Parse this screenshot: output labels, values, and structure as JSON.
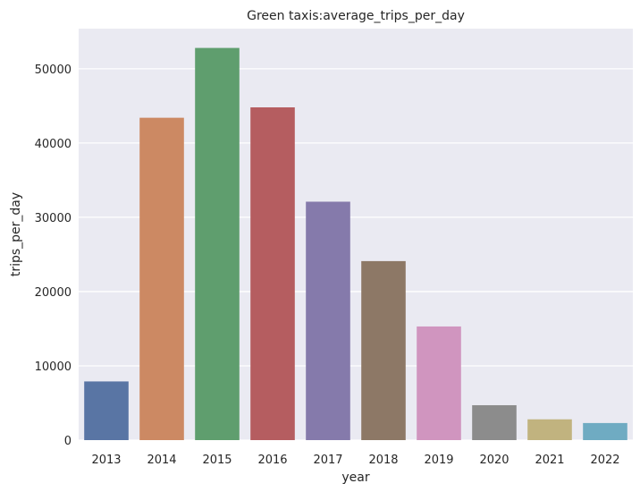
{
  "chart_data": {
    "type": "bar",
    "title": "Green taxis:average_trips_per_day",
    "xlabel": "year",
    "ylabel": "trips_per_day",
    "categories": [
      "2013",
      "2014",
      "2015",
      "2016",
      "2017",
      "2018",
      "2019",
      "2020",
      "2021",
      "2022"
    ],
    "values": [
      7900,
      43400,
      52800,
      44800,
      32100,
      24100,
      15300,
      4700,
      2800,
      2300
    ],
    "colors": [
      "#5975a4",
      "#cc8963",
      "#5f9e6e",
      "#b55d60",
      "#857aab",
      "#8d7866",
      "#d095bf",
      "#8c8c8c",
      "#c1b37f",
      "#6fabc2"
    ],
    "ylim": [
      0,
      55400
    ],
    "yticks": [
      0,
      10000,
      20000,
      30000,
      40000,
      50000
    ],
    "ytick_labels": [
      "0",
      "10000",
      "20000",
      "30000",
      "40000",
      "50000"
    ],
    "grid": true,
    "background": "#eaeaf2"
  }
}
